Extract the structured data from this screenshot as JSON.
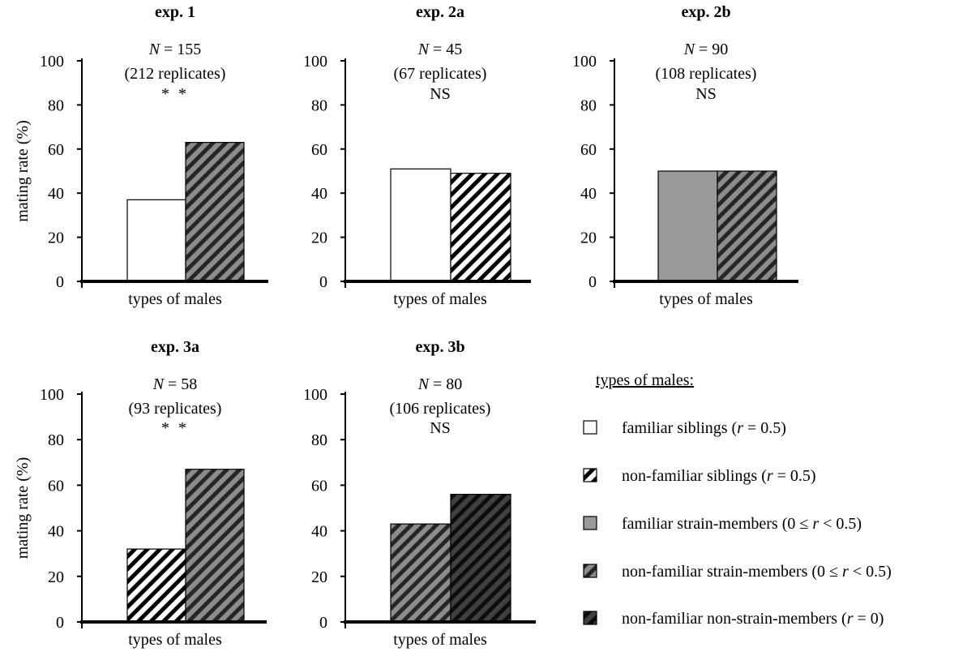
{
  "chart_data": [
    {
      "type": "bar",
      "title": "exp. 1",
      "n_label": "155",
      "replicates_label": "(212 replicates)",
      "significance": "* *",
      "xlabel": "types of males",
      "ylabel": "mating rate (%)",
      "ylim": [
        0,
        100
      ],
      "yticks": [
        0,
        20,
        40,
        60,
        80,
        100
      ],
      "categories": [
        "familiar siblings (r = 0.5)",
        "non-familiar strain-members (0 ≤ r < 0.5)"
      ],
      "values": [
        37,
        63
      ],
      "bar_styles": [
        "familiar-siblings",
        "non-familiar-strain-members"
      ]
    },
    {
      "type": "bar",
      "title": "exp. 2a",
      "n_label": "45",
      "replicates_label": "(67 replicates)",
      "significance": "NS",
      "xlabel": "types of males",
      "ylabel": "",
      "ylim": [
        0,
        100
      ],
      "yticks": [
        0,
        20,
        40,
        60,
        80,
        100
      ],
      "categories": [
        "familiar siblings (r = 0.5)",
        "non-familiar siblings (r = 0.5)"
      ],
      "values": [
        51,
        49
      ],
      "bar_styles": [
        "familiar-siblings",
        "non-familiar-siblings"
      ]
    },
    {
      "type": "bar",
      "title": "exp. 2b",
      "n_label": "90",
      "replicates_label": "(108 replicates)",
      "significance": "NS",
      "xlabel": "types of males",
      "ylabel": "",
      "ylim": [
        0,
        100
      ],
      "yticks": [
        0,
        20,
        40,
        60,
        80,
        100
      ],
      "categories": [
        "familiar strain-members (0 ≤ r < 0.5)",
        "non-familiar strain-members (0 ≤ r < 0.5)"
      ],
      "values": [
        50,
        50
      ],
      "bar_styles": [
        "familiar-strain-members",
        "non-familiar-strain-members"
      ]
    },
    {
      "type": "bar",
      "title": "exp. 3a",
      "n_label": "58",
      "replicates_label": "(93 replicates)",
      "significance": "* *",
      "xlabel": "types of males",
      "ylabel": "mating rate (%)",
      "ylim": [
        0,
        100
      ],
      "yticks": [
        0,
        20,
        40,
        60,
        80,
        100
      ],
      "categories": [
        "non-familiar siblings (r = 0.5)",
        "non-familiar strain-members (0 ≤ r < 0.5)"
      ],
      "values": [
        32,
        67
      ],
      "bar_styles": [
        "non-familiar-siblings",
        "non-familiar-strain-members"
      ]
    },
    {
      "type": "bar",
      "title": "exp. 3b",
      "n_label": "80",
      "replicates_label": "(106 replicates)",
      "significance": "NS",
      "xlabel": "types of males",
      "ylabel": "",
      "ylim": [
        0,
        100
      ],
      "yticks": [
        0,
        20,
        40,
        60,
        80,
        100
      ],
      "categories": [
        "non-familiar strain-members (0 ≤ r < 0.5)",
        "non-familiar non-strain-members (r = 0)"
      ],
      "values": [
        43,
        56
      ],
      "bar_styles": [
        "non-familiar-strain-members",
        "non-familiar-non-strain-members"
      ]
    }
  ],
  "legend": {
    "title": "types of males:",
    "items": [
      {
        "key": "familiar-siblings",
        "pre": "familiar siblings (",
        "var": "r",
        "post": " = 0.5)"
      },
      {
        "key": "non-familiar-siblings",
        "pre": "non-familiar siblings (",
        "var": "r",
        "post": " = 0.5)"
      },
      {
        "key": "familiar-strain-members",
        "pre": "familiar strain-members (0 ≤ ",
        "var": "r",
        "post": " < 0.5)"
      },
      {
        "key": "non-familiar-strain-members",
        "pre": "non-familiar strain-members (0 ≤ ",
        "var": "r",
        "post": " < 0.5)"
      },
      {
        "key": "non-familiar-non-strain-members",
        "pre": "non-familiar non-strain-members  (",
        "var": "r",
        "post": " = 0)"
      }
    ]
  },
  "n_prefix": "N",
  "styles": {
    "familiar-siblings": {
      "fill": "#ffffff",
      "stripe": "none"
    },
    "non-familiar-siblings": {
      "fill": "#ffffff",
      "stripe": "#000000"
    },
    "familiar-strain-members": {
      "fill": "#999999",
      "stripe": "none"
    },
    "non-familiar-strain-members": {
      "fill": "#8c8c8c",
      "stripe": "#262626"
    },
    "non-familiar-non-strain-members": {
      "fill": "#404040",
      "stripe": "#0d0d0d"
    }
  }
}
